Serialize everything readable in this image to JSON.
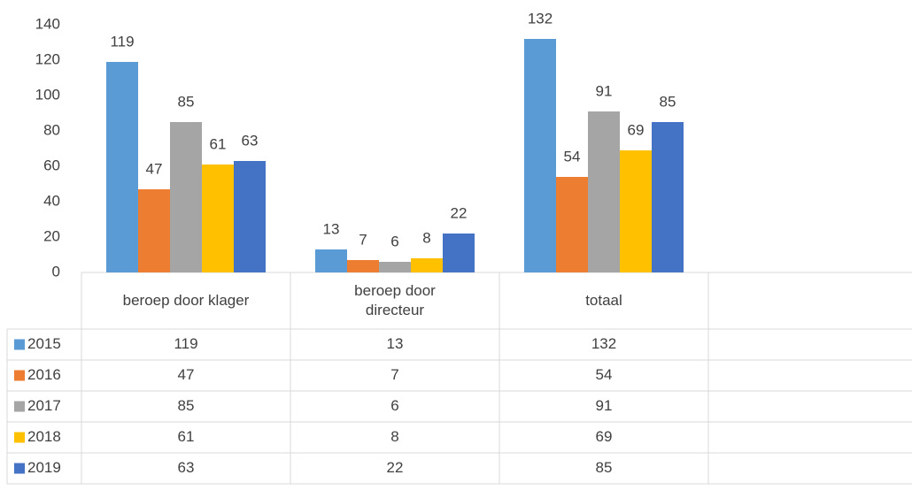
{
  "chart_data": {
    "type": "bar",
    "categories": [
      "beroep door klager",
      "beroep door directeur",
      "totaal",
      null
    ],
    "series": [
      {
        "name": "2015",
        "color": "#5b9bd5",
        "values": [
          119,
          13,
          132,
          null
        ]
      },
      {
        "name": "2016",
        "color": "#ed7d31",
        "values": [
          47,
          7,
          54,
          null
        ]
      },
      {
        "name": "2017",
        "color": "#a5a5a5",
        "values": [
          85,
          6,
          91,
          null
        ]
      },
      {
        "name": "2018",
        "color": "#ffc000",
        "values": [
          61,
          8,
          69,
          null
        ]
      },
      {
        "name": "2019",
        "color": "#4472c4",
        "values": [
          63,
          22,
          85,
          null
        ]
      }
    ],
    "ylim": [
      0,
      140
    ],
    "yticks": [
      0,
      20,
      40,
      60,
      80,
      100,
      120,
      140
    ],
    "grid": false,
    "legend": "table"
  }
}
